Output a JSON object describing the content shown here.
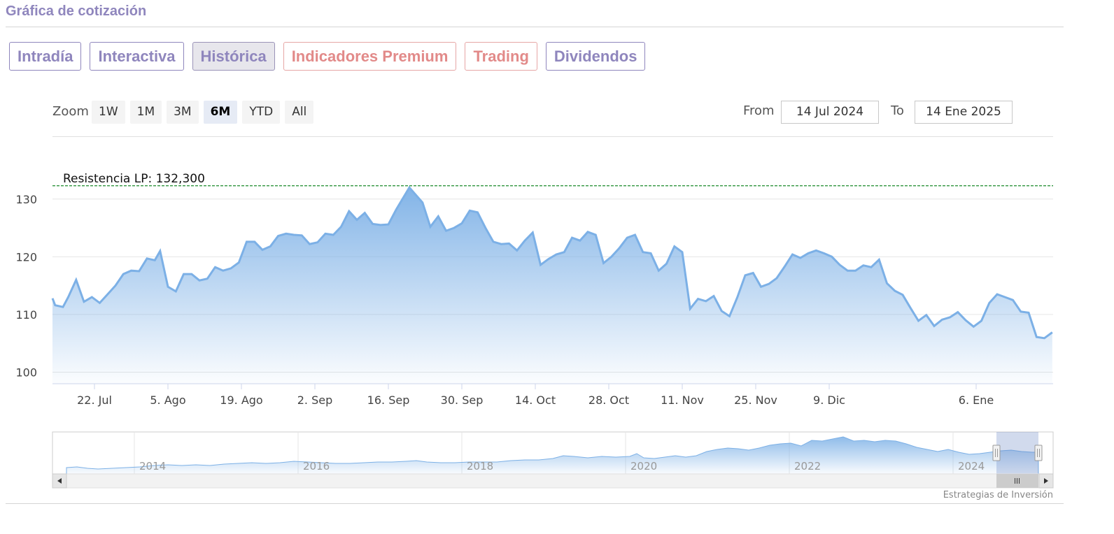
{
  "section_title": "Gráfica de cotización",
  "tabs": [
    {
      "label": "Intradía",
      "active": false,
      "premium": false
    },
    {
      "label": "Interactiva",
      "active": false,
      "premium": false
    },
    {
      "label": "Histórica",
      "active": true,
      "premium": false
    },
    {
      "label": "Indicadores Premium",
      "active": false,
      "premium": true
    },
    {
      "label": "Trading",
      "active": false,
      "premium": true
    },
    {
      "label": "Dividendos",
      "active": false,
      "premium": false
    }
  ],
  "zoom": {
    "label": "Zoom",
    "buttons": [
      "1W",
      "1M",
      "3M",
      "6M",
      "YTD",
      "All"
    ],
    "selected": "6M"
  },
  "range": {
    "from_label": "From",
    "from_value": "14 Jul 2024",
    "to_label": "To",
    "to_value": "14 Ene 2025"
  },
  "colors": {
    "line": "#7cb0e6",
    "fill_top": "#7cb0e6",
    "resistance": "#1a8a2a",
    "tab_accent": "#8f86bd",
    "premium_accent": "#e28a89"
  },
  "credit": "Estrategias de Inversión",
  "chart_data": {
    "type": "area",
    "ylim": [
      98,
      133
    ],
    "yticks": [
      100,
      110,
      120,
      130
    ],
    "xticks": [
      {
        "label": "22. Jul",
        "day": 8
      },
      {
        "label": "5. Ago",
        "day": 22
      },
      {
        "label": "19. Ago",
        "day": 36
      },
      {
        "label": "2. Sep",
        "day": 50
      },
      {
        "label": "16. Sep",
        "day": 64
      },
      {
        "label": "30. Sep",
        "day": 78
      },
      {
        "label": "14. Oct",
        "day": 92
      },
      {
        "label": "28. Oct",
        "day": 106
      },
      {
        "label": "11. Nov",
        "day": 120
      },
      {
        "label": "25. Nov",
        "day": 134
      },
      {
        "label": "9. Dic",
        "day": 148
      },
      {
        "label": "6. Ene",
        "day": 176
      }
    ],
    "x_range_days": [
      0,
      184
    ],
    "resistance": {
      "label": "Resistencia LP: 132,300",
      "value": 132.3
    },
    "series": [
      {
        "values": [
          [
            0,
            112.8
          ],
          [
            0.5,
            111.6
          ],
          [
            2,
            111.3
          ],
          [
            3,
            113
          ],
          [
            4.5,
            116
          ],
          [
            6,
            112.2
          ],
          [
            7.5,
            113
          ],
          [
            9,
            112
          ],
          [
            10.5,
            113.5
          ],
          [
            12,
            115
          ],
          [
            13.5,
            117
          ],
          [
            15,
            117.6
          ],
          [
            16.5,
            117.5
          ],
          [
            18,
            119.7
          ],
          [
            19.5,
            119.4
          ],
          [
            20.5,
            121
          ],
          [
            22,
            114.8
          ],
          [
            23.5,
            114
          ],
          [
            25,
            117
          ],
          [
            26.5,
            117
          ],
          [
            28,
            115.9
          ],
          [
            29.5,
            116.2
          ],
          [
            31,
            118.2
          ],
          [
            32.5,
            117.6
          ],
          [
            34,
            118
          ],
          [
            35.5,
            119
          ],
          [
            37,
            122.6
          ],
          [
            38.5,
            122.6
          ],
          [
            40,
            121.2
          ],
          [
            41.5,
            121.8
          ],
          [
            43,
            123.6
          ],
          [
            44.5,
            124
          ],
          [
            46,
            123.8
          ],
          [
            47.5,
            123.7
          ],
          [
            49,
            122.2
          ],
          [
            50.5,
            122.5
          ],
          [
            52,
            124
          ],
          [
            53.5,
            123.8
          ],
          [
            55,
            125.2
          ],
          [
            56.5,
            127.9
          ],
          [
            58,
            126.4
          ],
          [
            59.5,
            127.6
          ],
          [
            61,
            125.7
          ],
          [
            62.5,
            125.5
          ],
          [
            64,
            125.6
          ],
          [
            65.5,
            128.2
          ],
          [
            68,
            132
          ],
          [
            70.5,
            129.4
          ],
          [
            72,
            125.2
          ],
          [
            73.5,
            127
          ],
          [
            75,
            124.5
          ],
          [
            76.5,
            125
          ],
          [
            78,
            125.8
          ],
          [
            79.5,
            128
          ],
          [
            81,
            127.7
          ],
          [
            82.5,
            125
          ],
          [
            84,
            122.6
          ],
          [
            85.5,
            122.2
          ],
          [
            87,
            122.3
          ],
          [
            88.5,
            121.1
          ],
          [
            90,
            122.8
          ],
          [
            91.5,
            124.2
          ],
          [
            93,
            118.6
          ],
          [
            94.5,
            119.6
          ],
          [
            96,
            120.4
          ],
          [
            97.5,
            120.8
          ],
          [
            99,
            123.3
          ],
          [
            100.5,
            122.8
          ],
          [
            102,
            124.3
          ],
          [
            103.5,
            123.8
          ],
          [
            105,
            118.9
          ],
          [
            106.5,
            120
          ],
          [
            108,
            121.5
          ],
          [
            109.5,
            123.3
          ],
          [
            111,
            123.8
          ],
          [
            112.5,
            120.8
          ],
          [
            114,
            120.6
          ],
          [
            115.5,
            117.6
          ],
          [
            117,
            118.8
          ],
          [
            118.5,
            121.8
          ],
          [
            120,
            120.8
          ],
          [
            121.5,
            111
          ],
          [
            123,
            112.7
          ],
          [
            124.5,
            112.3
          ],
          [
            126,
            113.2
          ],
          [
            127.5,
            110.6
          ],
          [
            129,
            109.7
          ],
          [
            130.5,
            113
          ],
          [
            132,
            116.8
          ],
          [
            133.5,
            117.2
          ],
          [
            135,
            114.8
          ],
          [
            136.5,
            115.3
          ],
          [
            138,
            116.3
          ],
          [
            139.5,
            118.3
          ],
          [
            141,
            120.4
          ],
          [
            142.5,
            119.8
          ],
          [
            144,
            120.6
          ],
          [
            145.5,
            121.1
          ],
          [
            147,
            120.6
          ],
          [
            148.5,
            120
          ],
          [
            150,
            118.6
          ],
          [
            151.5,
            117.6
          ],
          [
            153,
            117.6
          ],
          [
            154.5,
            118.5
          ],
          [
            156,
            118.2
          ],
          [
            157.5,
            119.5
          ],
          [
            159,
            115.4
          ],
          [
            160.5,
            114.1
          ],
          [
            162,
            113.4
          ],
          [
            163.5,
            111.1
          ],
          [
            165,
            108.9
          ],
          [
            166.5,
            109.9
          ],
          [
            168,
            108
          ],
          [
            169.5,
            109.1
          ],
          [
            171,
            109.5
          ],
          [
            172.5,
            110.4
          ],
          [
            174,
            109
          ],
          [
            175.5,
            107.9
          ],
          [
            177,
            108.9
          ],
          [
            178.5,
            112
          ],
          [
            180,
            113.5
          ],
          [
            181.5,
            113
          ],
          [
            183,
            112.5
          ],
          [
            184.5,
            110.5
          ],
          [
            186,
            110.3
          ],
          [
            187.5,
            106.1
          ],
          [
            189,
            105.9
          ],
          [
            190.5,
            106.9
          ]
        ]
      }
    ],
    "navigator": {
      "labels": [
        "2014",
        "2016",
        "2018",
        "2020",
        "2022",
        "2024"
      ]
    }
  }
}
